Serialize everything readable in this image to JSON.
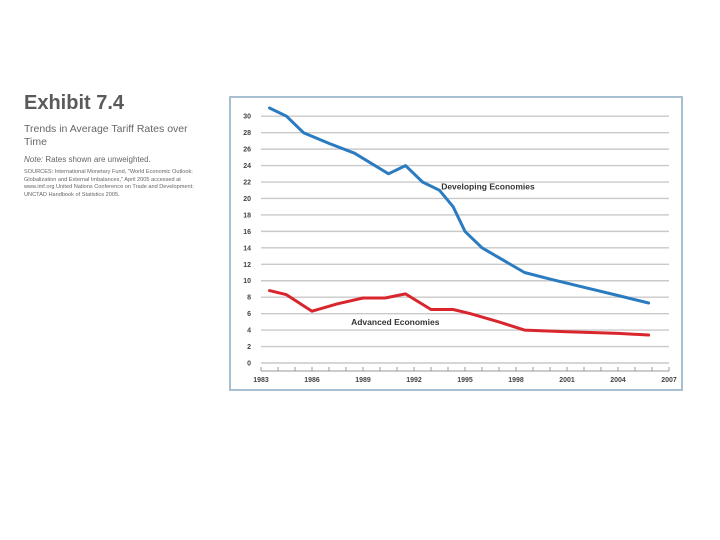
{
  "exhibit": {
    "title": "Exhibit 7.4",
    "subtitle": "Trends in Average Tariff Rates over Time",
    "note_label": "Note:",
    "note_text": "Rates shown are unweighted.",
    "sources": "SOURCES: International Monetary Fund, \"World Economic Outlook: Globalization and External Imbalances,\" April 2005 accessed at www.imf.org United Nations Conference on Trade and Development: UNCTAD Handbook of Statistics 2005."
  },
  "chart_data": {
    "type": "line",
    "title": "Trends in Average Tariff Rates over Time",
    "xlabel": "",
    "ylabel": "",
    "xlim": [
      1983,
      2007
    ],
    "ylim": [
      0,
      31
    ],
    "grid": true,
    "x_ticks": [
      1983,
      1986,
      1989,
      1992,
      1995,
      1998,
      2001,
      2004,
      2007
    ],
    "y_ticks": [
      0,
      2,
      4,
      6,
      8,
      10,
      12,
      14,
      16,
      18,
      20,
      22,
      24,
      26,
      28,
      30
    ],
    "series": [
      {
        "name": "Developing Economies",
        "color": "#2b7bc0",
        "x": [
          1983.5,
          1984.5,
          1985.5,
          1987,
          1988.5,
          1990.5,
          1991.5,
          1992.5,
          1993.5,
          1994.3,
          1995,
          1996,
          1997,
          1998.5,
          2000,
          2002,
          2004,
          2005.8
        ],
        "values": [
          31,
          30,
          28,
          26.7,
          25.5,
          23,
          24,
          22,
          21,
          19,
          16,
          14,
          12.8,
          11,
          10.2,
          9.2,
          8.2,
          7.3
        ]
      },
      {
        "name": "Advanced Economies",
        "color": "#d9262e",
        "x": [
          1983.5,
          1984.5,
          1986,
          1987.5,
          1989,
          1990.3,
          1991.5,
          1993,
          1994.3,
          1995.3,
          1997,
          1998.5,
          2001,
          2004,
          2005.8
        ],
        "values": [
          8.8,
          8.3,
          6.3,
          7.2,
          7.9,
          7.9,
          8.4,
          6.5,
          6.5,
          6,
          5,
          4,
          3.8,
          3.6,
          3.4
        ]
      }
    ]
  }
}
